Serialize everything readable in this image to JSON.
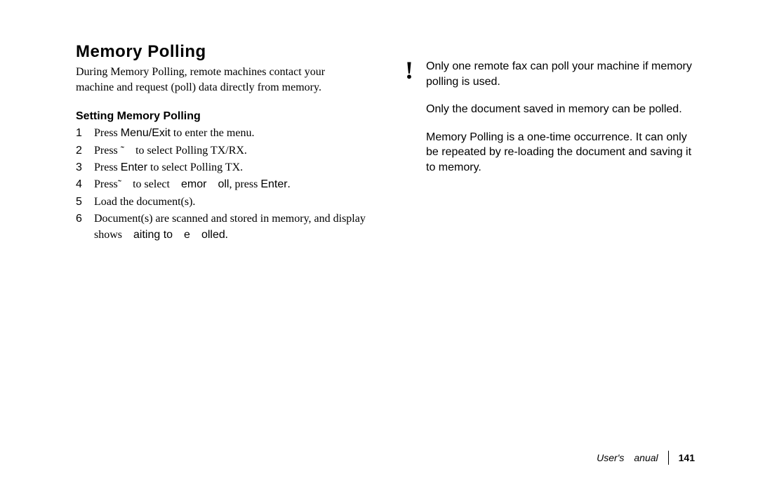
{
  "left": {
    "heading": "Memory Polling",
    "intro": "During Memory Polling, remote machines contact your machine and request (poll) data directly from memory.",
    "subheading": "Setting Memory Polling",
    "steps": [
      {
        "num": "1",
        "html": "Press <span class='sans'>Menu/Exit</span> to enter the menu."
      },
      {
        "num": "2",
        "html": "Press ˜ to select Polling TX/RX."
      },
      {
        "num": "3",
        "html": "Press <span class='sans'>Enter</span> to select Polling TX."
      },
      {
        "num": "4",
        "html": "Press˜ to select <span class='sans'>emor oll</span>, press <span class='sans'>Enter</span>."
      },
      {
        "num": "5",
        "html": "Load the document(s)."
      },
      {
        "num": "6",
        "html": "Document(s) are scanned and stored in memory, and display shows <span class='sans'>aiting to e olled</span>."
      }
    ]
  },
  "right": {
    "bang": "!",
    "note1": "Only one remote fax can poll your machine if memory polling is used.",
    "note2": "Only the document saved in memory can be polled.",
    "note3": "Memory Polling is a one-time occurrence.  It can only be repeated by re-loading the document and saving it to memory."
  },
  "footer": {
    "label": "User's anual",
    "page": "141"
  }
}
